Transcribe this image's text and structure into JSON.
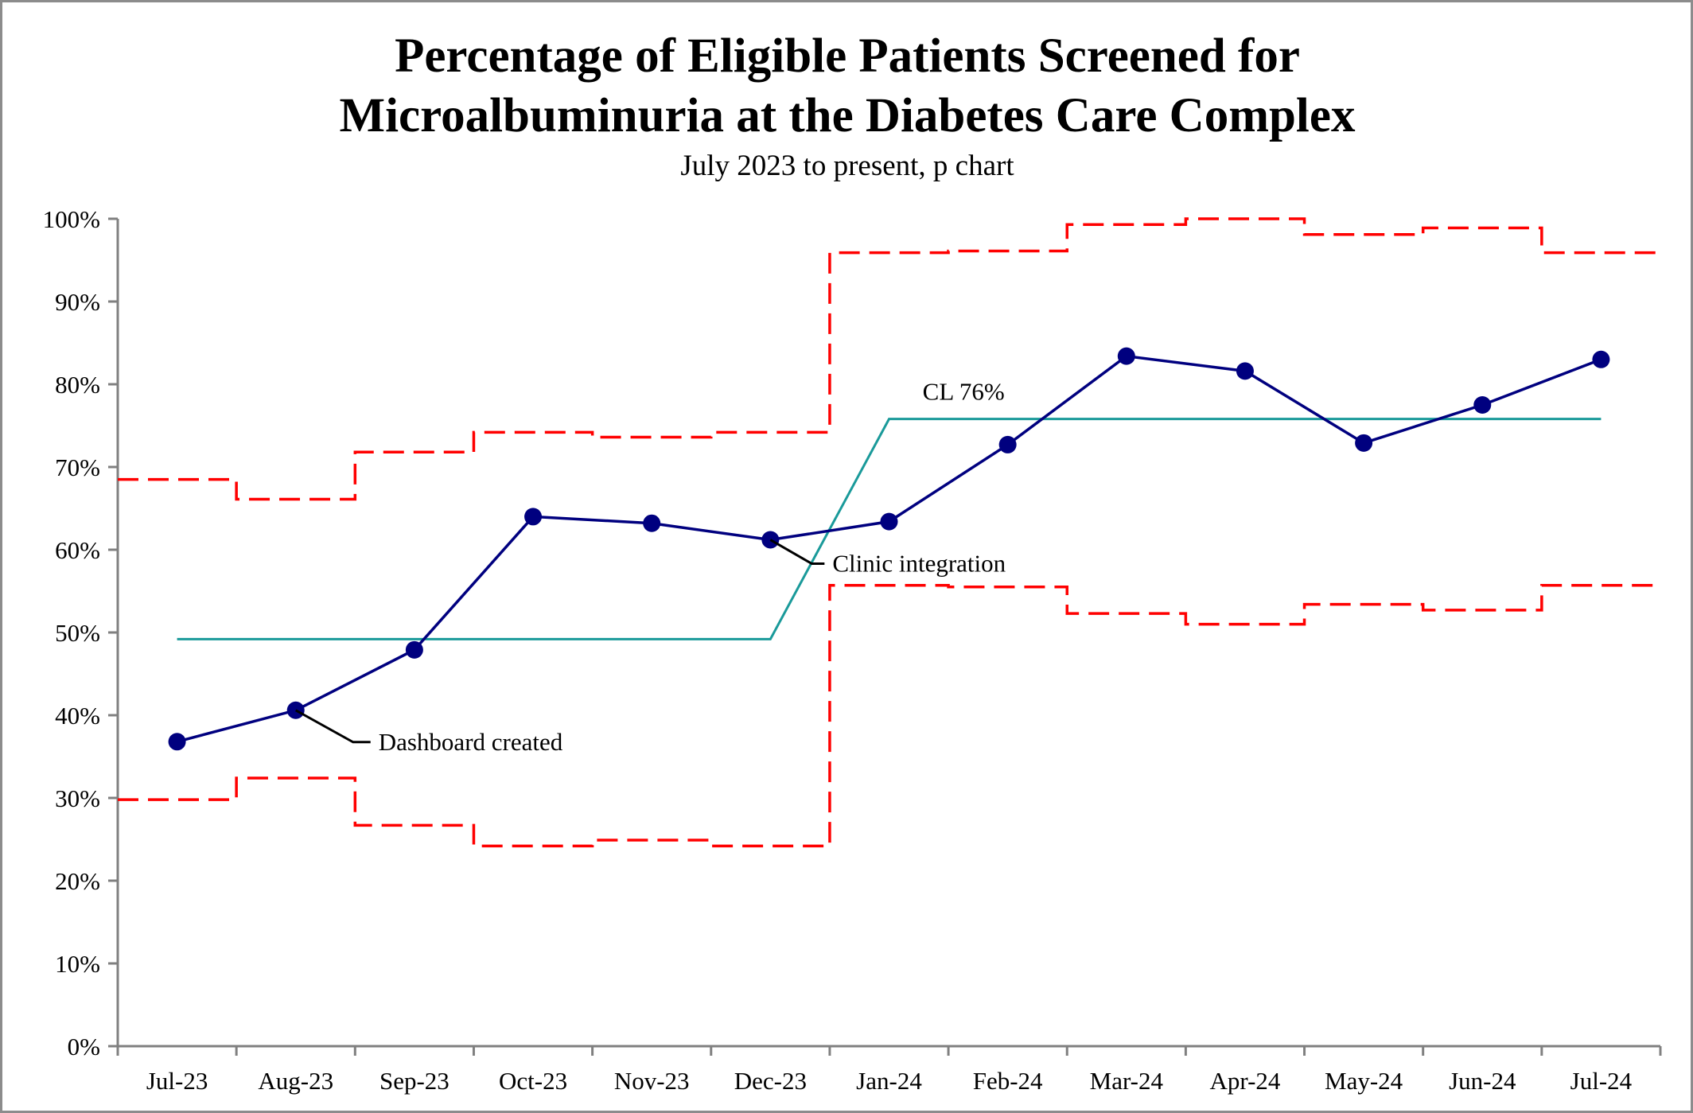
{
  "chart_data": {
    "type": "line",
    "title_line1": "Percentage of Eligible Patients Screened for",
    "title_line2": "Microalbuminuria at the Diabetes Care Complex",
    "subtitle": "July 2023 to present, p chart",
    "categories": [
      "Jul-23",
      "Aug-23",
      "Sep-23",
      "Oct-23",
      "Nov-23",
      "Dec-23",
      "Jan-24",
      "Feb-24",
      "Mar-24",
      "Apr-24",
      "May-24",
      "Jun-24",
      "Jul-24"
    ],
    "ylim": [
      0,
      100
    ],
    "y_ticks": [
      0,
      10,
      20,
      30,
      40,
      50,
      60,
      70,
      80,
      90,
      100
    ],
    "y_tick_labels": [
      "0%",
      "10%",
      "20%",
      "30%",
      "40%",
      "50%",
      "60%",
      "70%",
      "80%",
      "90%",
      "100%"
    ],
    "grid": false,
    "series": [
      {
        "role": "data",
        "color": "#00007f",
        "values": [
          36.8,
          40.6,
          47.9,
          64.0,
          63.2,
          61.2,
          63.4,
          72.7,
          83.4,
          81.6,
          72.9,
          77.5,
          83.0
        ]
      },
      {
        "role": "center",
        "color": "#1a9a9a",
        "values": [
          49.2,
          49.2,
          49.2,
          49.2,
          49.2,
          49.2,
          75.8,
          75.8,
          75.8,
          75.8,
          75.8,
          75.8,
          75.8
        ]
      },
      {
        "role": "upper-limit",
        "color": "#ff0000",
        "values": [
          68.5,
          66.1,
          71.8,
          74.2,
          73.6,
          74.2,
          95.9,
          96.1,
          99.3,
          100.0,
          98.1,
          98.9,
          95.9
        ]
      },
      {
        "role": "lower-limit",
        "color": "#ff0000",
        "values": [
          29.8,
          32.4,
          26.7,
          24.2,
          24.9,
          24.2,
          55.7,
          55.5,
          52.3,
          51.0,
          53.4,
          52.7,
          55.7
        ]
      }
    ],
    "annotations": [
      {
        "text": "Dashboard created",
        "category": "Aug-23"
      },
      {
        "text": "Clinic integration",
        "category": "Dec-23"
      },
      {
        "text": "CL  76%",
        "category": "Feb-24"
      }
    ]
  }
}
